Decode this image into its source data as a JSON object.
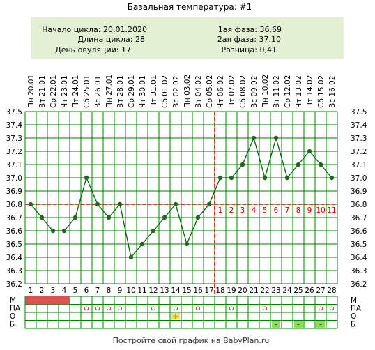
{
  "title": "Базальная температура: #1",
  "footer": "Постройте свой график на BabyPlan.ru",
  "info": {
    "cycle_start": "Начало цикла: 20.01.2020",
    "cycle_length": "Длина цикла: 28",
    "ovulation_day": "День овуляции: 17",
    "phase1": "1ая фаза: 36.69",
    "phase2": "2ая фаза: 37.10",
    "difference": "Разница: 0,41"
  },
  "colors": {
    "info_bg": "#e2f1d3",
    "grid": "#008000",
    "line": "#006400",
    "point": "#1e6a1e",
    "coverline": "#cc0000",
    "menstruation": "#d9534f",
    "day_numbers_phase2": "#cc0000",
    "ovulation_marker": "#f2e25a",
    "b_marker": "#8ee04a"
  },
  "chart_data": {
    "type": "line",
    "dates": [
      "Пн 20.01",
      "Вт 21.01",
      "Ср 22.01",
      "Чт 23.01",
      "Пт 24.01",
      "Сб 25.01",
      "Вс 26.01",
      "Пн 27.01",
      "Вт 28.01",
      "Ср 29.01",
      "Чт 30.01",
      "Пт 31.01",
      "Сб 01.02",
      "Вс 02.02",
      "Пн 03.02",
      "Вт 04.02",
      "Ср 05.02",
      "Чт 06.02",
      "Пт 07.02",
      "Сб 08.02",
      "Вс 09.02",
      "Пн 10.02",
      "Вт 11.02",
      "Ср 12.02",
      "Чт 13.02",
      "Пт 14.02",
      "Сб 15.02",
      "Вс 16.02"
    ],
    "days": [
      1,
      2,
      3,
      4,
      5,
      6,
      7,
      8,
      9,
      10,
      11,
      12,
      13,
      14,
      15,
      16,
      17,
      18,
      19,
      20,
      21,
      22,
      23,
      24,
      25,
      26,
      27,
      28
    ],
    "values": [
      36.8,
      36.7,
      36.6,
      36.6,
      36.7,
      37.0,
      36.8,
      36.7,
      36.8,
      36.4,
      36.5,
      36.6,
      36.7,
      36.8,
      36.5,
      36.7,
      36.8,
      37.0,
      37.0,
      37.1,
      37.3,
      37.0,
      37.3,
      37.0,
      37.1,
      37.2,
      37.1,
      37.0
    ],
    "ylim": [
      36.2,
      37.5
    ],
    "yticks": [
      "37.5",
      "37.4",
      "37.3",
      "37.2",
      "37.1",
      "37.0",
      "36.9",
      "36.8",
      "36.7",
      "36.6",
      "36.5",
      "36.4",
      "36.3",
      "36.2"
    ],
    "coverline": 36.8,
    "ovulation_day": 17,
    "phase2_day_numbers": [
      "1",
      "2",
      "3",
      "4",
      "5",
      "6",
      "7",
      "8",
      "9",
      "10",
      "11"
    ],
    "grid": true
  },
  "table": {
    "row_labels": [
      "М",
      "ПА",
      "О",
      "Б"
    ],
    "menstruation_days": [
      1,
      2,
      3,
      4
    ],
    "pa_days": [
      6,
      7,
      8,
      9,
      12,
      14,
      16,
      19,
      22,
      27,
      28
    ],
    "pa_symbol": "o",
    "o_days": [
      14
    ],
    "o_symbol": "+",
    "b_days": [
      23,
      25,
      27
    ],
    "b_symbol": "-"
  }
}
